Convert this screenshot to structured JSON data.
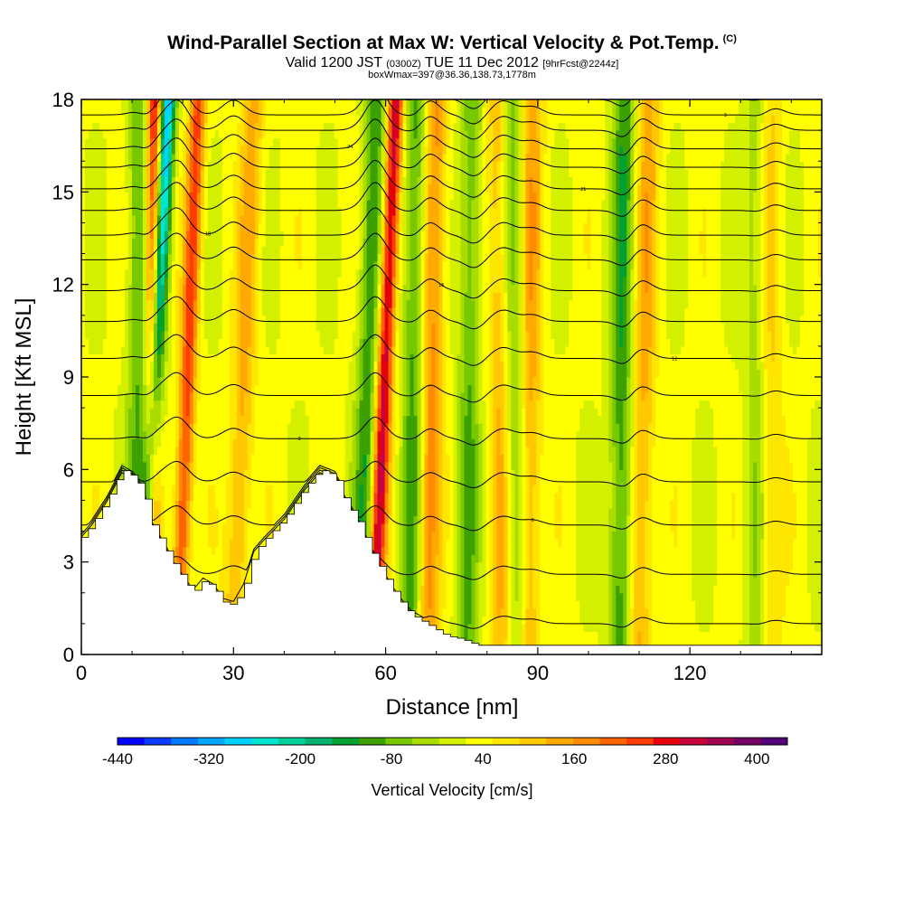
{
  "header": {
    "title": "Wind-Parallel Section at Max W: Vertical Velocity & Pot.Temp.",
    "title_mark": "(C)",
    "valid_prefix": "Valid 1200 JST",
    "valid_utc": "(0300Z)",
    "valid_date": "TUE 11 Dec 2012",
    "forecast": "[9hrFcst@2244z]",
    "box_info": "boxWmax=397@36.36,138.73,1778m"
  },
  "chart_data": {
    "type": "heatmap",
    "xlabel": "Distance [nm]",
    "ylabel": "Height [Kft MSL]",
    "xlim": [
      0,
      146
    ],
    "ylim": [
      0,
      18
    ],
    "x_ticks": [
      0,
      30,
      60,
      90,
      120
    ],
    "y_ticks": [
      0,
      3,
      6,
      9,
      12,
      15,
      18
    ],
    "colorbar": {
      "title": "Vertical Velocity [cm/s]",
      "min": -440,
      "max": 440,
      "labels": [
        -440,
        -320,
        -200,
        -80,
        40,
        160,
        280,
        400
      ],
      "colors": [
        "#0000ff",
        "#0a3cff",
        "#0078ff",
        "#00a5ff",
        "#00d2ff",
        "#00e6d2",
        "#00d29b",
        "#00b46e",
        "#00a032",
        "#3ca000",
        "#78c800",
        "#aadc00",
        "#d2f000",
        "#ffff00",
        "#ffe600",
        "#ffc800",
        "#ffaa00",
        "#ff8c00",
        "#ff6400",
        "#ff3c00",
        "#e6000a",
        "#c8003c",
        "#a00050",
        "#780064",
        "#500078"
      ]
    },
    "terrain": [
      [
        0,
        3.8
      ],
      [
        2,
        4.2
      ],
      [
        5,
        5.0
      ],
      [
        8,
        6.0
      ],
      [
        10,
        5.8
      ],
      [
        12,
        5.4
      ],
      [
        14,
        4.2
      ],
      [
        16,
        3.6
      ],
      [
        18,
        3.0
      ],
      [
        20,
        2.5
      ],
      [
        22,
        2.0
      ],
      [
        24,
        2.4
      ],
      [
        26,
        2.2
      ],
      [
        28,
        1.7
      ],
      [
        30,
        1.6
      ],
      [
        32,
        2.2
      ],
      [
        34,
        3.3
      ],
      [
        36,
        3.7
      ],
      [
        40,
        4.4
      ],
      [
        44,
        5.4
      ],
      [
        47,
        6.0
      ],
      [
        50,
        5.8
      ],
      [
        52,
        5.0
      ],
      [
        55,
        4.2
      ],
      [
        57,
        3.4
      ],
      [
        59,
        2.8
      ],
      [
        61,
        2.2
      ],
      [
        63,
        1.7
      ],
      [
        65,
        1.3
      ],
      [
        68,
        1.0
      ],
      [
        72,
        0.6
      ],
      [
        75,
        0.5
      ],
      [
        78,
        0.3
      ],
      [
        90,
        0.3
      ],
      [
        120,
        0.3
      ],
      [
        146,
        0.3
      ]
    ],
    "updrafts": [
      {
        "x_bottom": 13.5,
        "x_top": 14.5,
        "intensity": 300
      },
      {
        "x_bottom": 19.0,
        "x_top": 23.0,
        "intensity": 220
      },
      {
        "x_bottom": 30.0,
        "x_top": 34.0,
        "intensity": 110
      },
      {
        "x_bottom": 57.5,
        "x_top": 62.0,
        "intensity": 300
      },
      {
        "x_bottom": 68.0,
        "x_top": 70.0,
        "intensity": 150
      },
      {
        "x_bottom": 83.0,
        "x_top": 82.0,
        "intensity": 100
      },
      {
        "x_bottom": 88.0,
        "x_top": 89.0,
        "intensity": 120
      },
      {
        "x_bottom": 110.0,
        "x_top": 112.0,
        "intensity": 110
      },
      {
        "x_bottom": 136.0,
        "x_top": 136.0,
        "intensity": 70
      }
    ],
    "downdrafts": [
      {
        "x_bottom": 12.0,
        "x_top": 17.0,
        "intensity": -340
      },
      {
        "x_bottom": 11.0,
        "x_top": 11.5,
        "intensity": -120
      },
      {
        "x_bottom": 55.0,
        "x_top": 58.0,
        "intensity": -140
      },
      {
        "x_bottom": 65.0,
        "x_top": 66.0,
        "intensity": -130
      },
      {
        "x_bottom": 76.0,
        "x_top": 77.0,
        "intensity": -110
      },
      {
        "x_bottom": 86.0,
        "x_top": 85.0,
        "intensity": -100
      },
      {
        "x_bottom": 106.0,
        "x_top": 107.0,
        "intensity": -140
      },
      {
        "x_bottom": 133.0,
        "x_top": 133.0,
        "intensity": -70
      }
    ],
    "theta_isentropes": {
      "base_heights_kft": [
        1.0,
        2.6,
        4.2,
        5.6,
        7.0,
        8.4,
        9.6,
        10.8,
        11.8,
        12.8,
        13.6,
        14.4,
        15.1,
        15.8,
        16.4,
        17.0,
        17.5,
        18.0
      ],
      "contour_labels": [
        "3",
        "6",
        "9",
        "12",
        "15",
        "18",
        "21",
        "24"
      ]
    }
  }
}
